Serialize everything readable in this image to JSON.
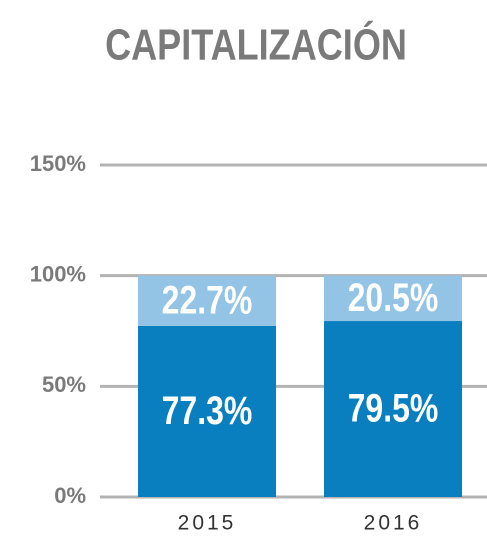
{
  "chart_data": {
    "type": "stacked_bar",
    "title": "CAPITALIZACIÓN",
    "categories": [
      "2015",
      "2016"
    ],
    "series": [
      {
        "color": "#0a7fbf",
        "values": [
          77.3,
          79.5
        ],
        "value_labels": [
          "77.3%",
          "79.5%"
        ]
      },
      {
        "color": "#93c4e5",
        "values": [
          22.7,
          20.5
        ],
        "value_labels": [
          "22.7%",
          "20.5%"
        ]
      }
    ],
    "ylim": [
      0,
      150
    ],
    "yticks": [
      {
        "value": 0,
        "label": "0%"
      },
      {
        "value": 50,
        "label": "50%"
      },
      {
        "value": 100,
        "label": "100%"
      },
      {
        "value": 150,
        "label": "150%"
      }
    ],
    "grid": true
  }
}
